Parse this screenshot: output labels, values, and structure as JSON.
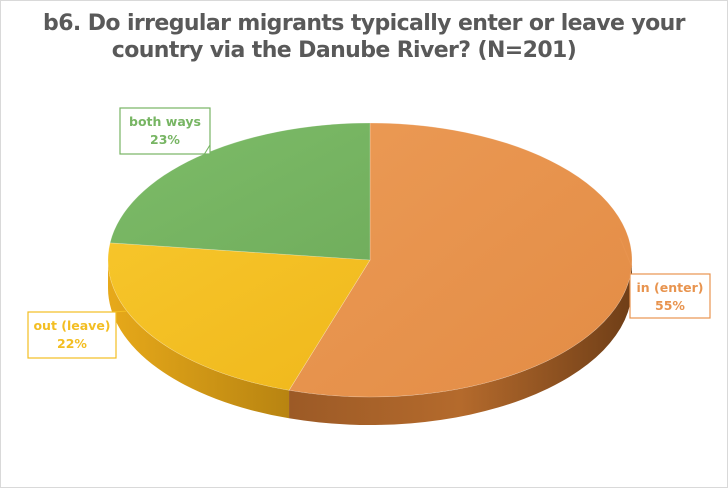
{
  "chart_data": {
    "type": "pie",
    "title_lines": [
      "b6. Do irregular migrants typically enter or leave your",
      "country via the Danube River?  (N=201)"
    ],
    "slices": [
      {
        "label": "in (enter)",
        "value": 55,
        "value_label": "55%",
        "color": "#E8944F"
      },
      {
        "label": "out (leave)",
        "value": 22,
        "value_label": "22%",
        "color": "#F3BE22"
      },
      {
        "label": "both ways",
        "value": 23,
        "value_label": "23%",
        "color": "#77B563"
      }
    ],
    "style": "3d"
  }
}
